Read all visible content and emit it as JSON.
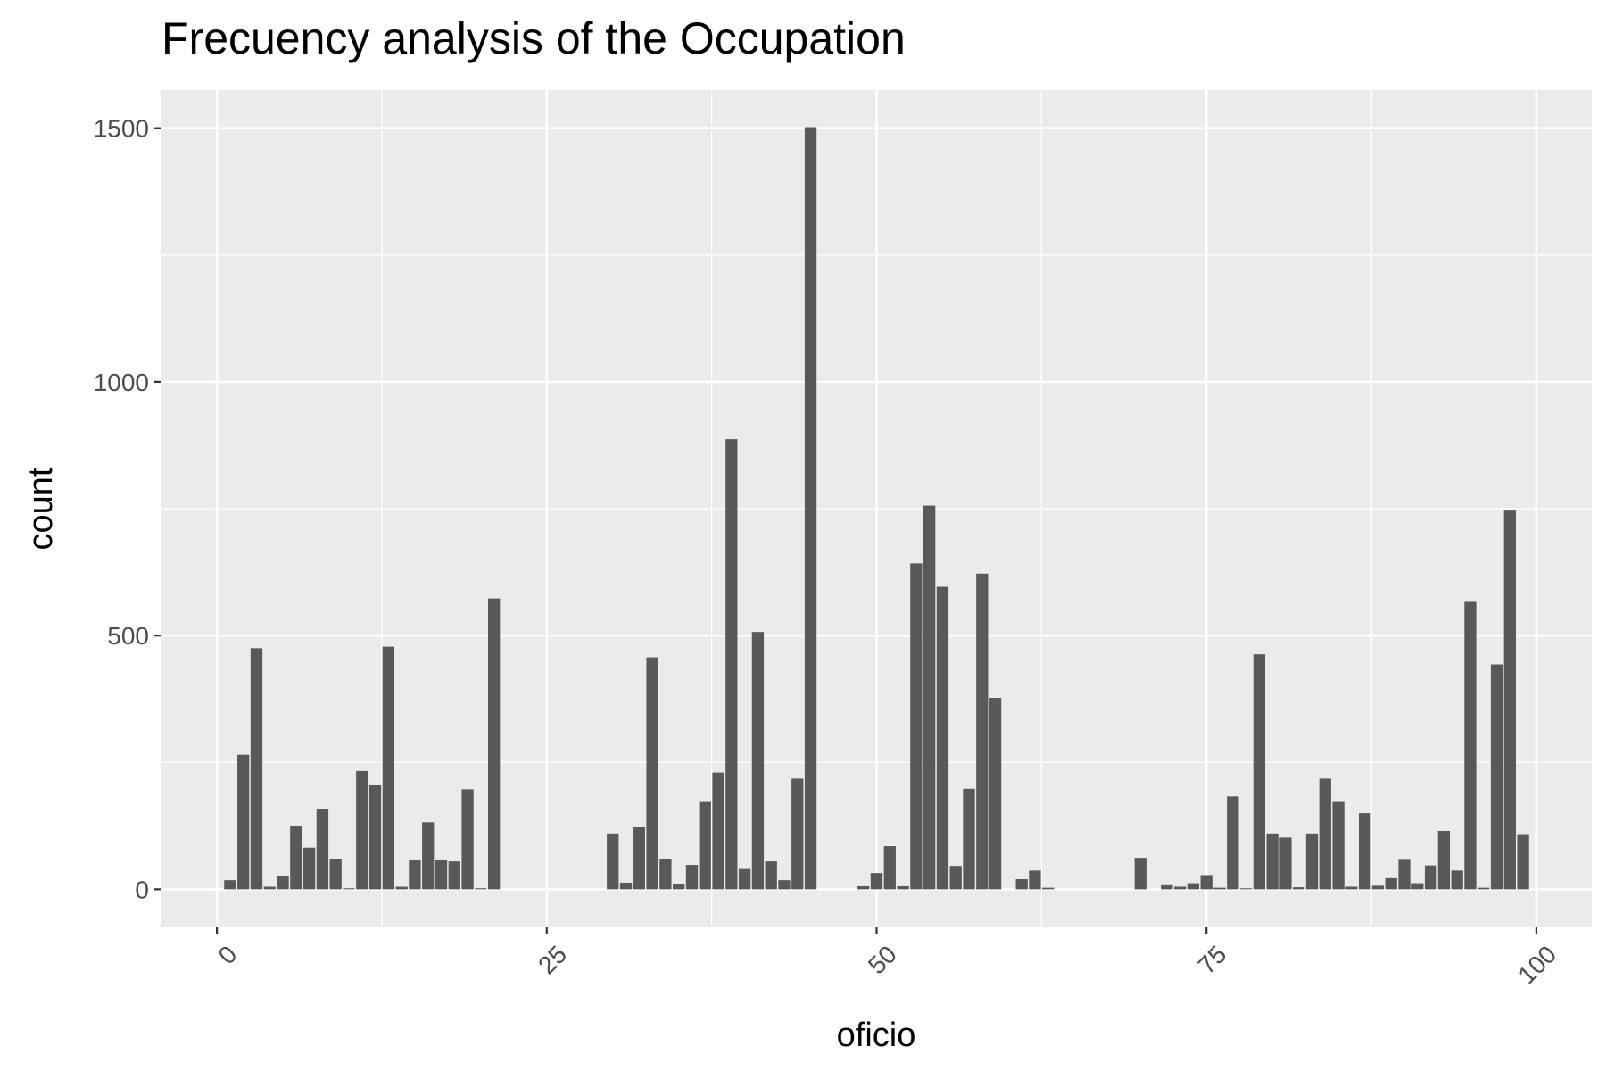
{
  "chart_data": {
    "type": "bar",
    "title": "Frecuency analysis of the Occupation",
    "xlabel": "oficio",
    "ylabel": "count",
    "xlim": [
      -4.2,
      104.2
    ],
    "ylim": [
      -75,
      1575
    ],
    "x_ticks": [
      0,
      25,
      50,
      75,
      100
    ],
    "x_tick_labels": [
      "0",
      "25",
      "50",
      "75",
      "100"
    ],
    "y_ticks": [
      0,
      500,
      1000,
      1500
    ],
    "y_tick_labels": [
      "0",
      "500",
      "1000",
      "1500"
    ],
    "grid": true,
    "legend": "none",
    "colors": {
      "bar": "#595959",
      "panel": "#ebebeb",
      "grid": "#ffffff"
    },
    "x": [
      1,
      2,
      3,
      4,
      5,
      6,
      7,
      8,
      9,
      10,
      11,
      12,
      13,
      14,
      15,
      16,
      17,
      18,
      19,
      20,
      21,
      30,
      31,
      32,
      33,
      34,
      35,
      36,
      37,
      38,
      39,
      40,
      41,
      42,
      43,
      44,
      45,
      49,
      50,
      51,
      52,
      53,
      54,
      55,
      56,
      57,
      58,
      59,
      61,
      62,
      63,
      70,
      72,
      73,
      74,
      75,
      76,
      77,
      78,
      79,
      80,
      81,
      82,
      83,
      84,
      85,
      86,
      87,
      88,
      89,
      90,
      91,
      92,
      93,
      94,
      95,
      96,
      97,
      98,
      99
    ],
    "values": [
      18,
      265,
      475,
      5,
      27,
      125,
      82,
      158,
      60,
      2,
      233,
      205,
      478,
      5,
      57,
      132,
      57,
      55,
      197,
      2,
      573,
      110,
      13,
      122,
      457,
      60,
      10,
      48,
      172,
      230,
      887,
      40,
      507,
      55,
      18,
      218,
      1502,
      6,
      32,
      85,
      6,
      642,
      756,
      596,
      46,
      198,
      622,
      377,
      20,
      37,
      3,
      62,
      8,
      5,
      12,
      28,
      3,
      183,
      2,
      463,
      110,
      102,
      4,
      110,
      218,
      172,
      5,
      150,
      7,
      22,
      58,
      12,
      47,
      115,
      37,
      568,
      3,
      443,
      748,
      107
    ]
  }
}
